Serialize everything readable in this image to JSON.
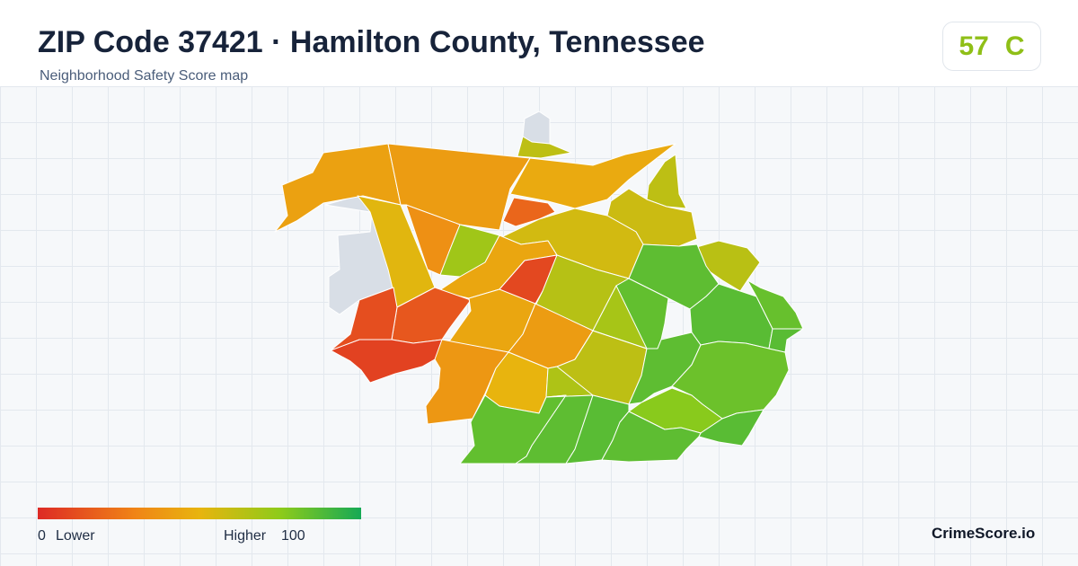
{
  "header": {
    "title": "ZIP Code 37421 · Hamilton County, Tennessee",
    "subtitle": "Neighborhood Safety Score map"
  },
  "score": {
    "value": "57",
    "grade": "C",
    "color": "#8fbf17"
  },
  "legend": {
    "min_value": "0",
    "min_label": "Lower",
    "max_label": "Higher",
    "max_value": "100",
    "colors": [
      "#dd2a25",
      "#f08416",
      "#e8b40e",
      "#8ecb1a",
      "#15a955"
    ]
  },
  "brand": "CrimeScore.io",
  "map": {
    "no_data_color": "#d8dee6",
    "regions": [
      {
        "name": "north-notch",
        "score": null
      },
      {
        "name": "west-gap",
        "score": null
      },
      {
        "name": "northwest-arm",
        "score": 42
      },
      {
        "name": "north-central",
        "score": 40
      },
      {
        "name": "northeast-band",
        "score": 46
      },
      {
        "name": "tiny-north",
        "score": 62
      },
      {
        "name": "small-red-north",
        "score": 20
      },
      {
        "name": "east-spike",
        "score": 62
      },
      {
        "name": "east-band-2",
        "score": 58
      },
      {
        "name": "diagonal-band",
        "score": 56
      },
      {
        "name": "orange-west",
        "score": 35
      },
      {
        "name": "olive-west",
        "score": 52
      },
      {
        "name": "green-wedge",
        "score": 70
      },
      {
        "name": "mustard-center",
        "score": 44
      },
      {
        "name": "red-center",
        "score": 10
      },
      {
        "name": "east-lime-upper",
        "score": 64
      },
      {
        "name": "east-lime-lower",
        "score": 62
      },
      {
        "name": "far-east-lime",
        "score": 63
      },
      {
        "name": "red-west-upper",
        "score": 15
      },
      {
        "name": "red-west-lower",
        "score": 8
      },
      {
        "name": "red-south-west",
        "score": 12
      },
      {
        "name": "amber-south",
        "score": 44
      },
      {
        "name": "orange-south",
        "score": 38
      },
      {
        "name": "orange-center",
        "score": 40
      },
      {
        "name": "green-center",
        "score": 68
      },
      {
        "name": "olive-south",
        "score": 50
      },
      {
        "name": "lime-south",
        "score": 66
      },
      {
        "name": "east-green-1",
        "score": 85
      },
      {
        "name": "east-green-2",
        "score": 84
      },
      {
        "name": "east-green-3",
        "score": 86
      },
      {
        "name": "east-green-4",
        "score": 83
      },
      {
        "name": "east-green-5",
        "score": 85
      },
      {
        "name": "east-green-6",
        "score": 82
      },
      {
        "name": "east-green-7",
        "score": 86
      },
      {
        "name": "east-green-8",
        "score": 85
      },
      {
        "name": "bright-green-southeast",
        "score": 76
      },
      {
        "name": "southeast-tip",
        "score": 86
      },
      {
        "name": "south-green-1",
        "score": 84
      },
      {
        "name": "south-green-2",
        "score": 85
      },
      {
        "name": "south-green-3",
        "score": 86
      },
      {
        "name": "south-green-4",
        "score": 85
      }
    ]
  }
}
